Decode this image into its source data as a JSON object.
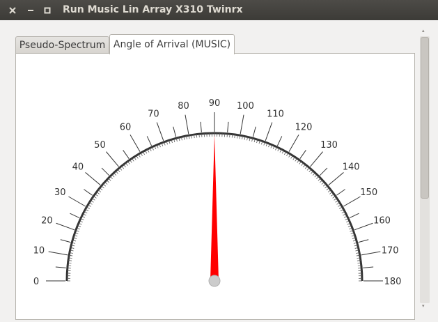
{
  "window": {
    "title": "Run Music Lin Array X310 Twinrx",
    "close_icon": "close-icon",
    "minimize_icon": "minimize-icon",
    "maximize_icon": "maximize-icon"
  },
  "tabs": [
    {
      "label": "Pseudo-Spectrum",
      "active": false
    },
    {
      "label": "Angle of Arrival (MUSIC)",
      "active": true
    }
  ],
  "gauge": {
    "min": 0,
    "max": 180,
    "major_step": 10,
    "minor_step": 5,
    "tick_labels": [
      "0",
      "10",
      "20",
      "30",
      "40",
      "50",
      "60",
      "70",
      "80",
      "90",
      "100",
      "110",
      "120",
      "130",
      "140",
      "150",
      "160",
      "170",
      "180"
    ],
    "needle_value": 90,
    "needle_color": "#ff0000",
    "arc_color": "#333333",
    "hub_color": "#cccccc"
  }
}
